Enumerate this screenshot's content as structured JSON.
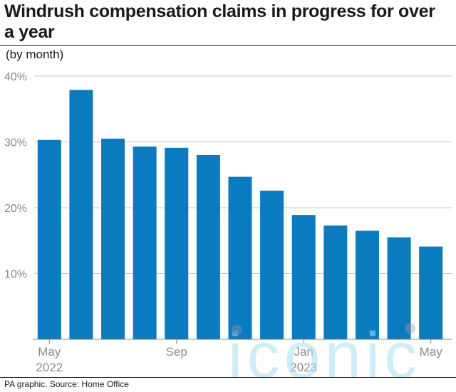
{
  "title": "Windrush compensation claims in progress for over a year",
  "subtitle": "(by month)",
  "source": "PA graphic. Source: Home Office",
  "watermark": "iconic",
  "colors": {
    "bar": "#0a7bbf",
    "grid": "#c8c8c8",
    "axis": "#888888",
    "text": "#1a1a1a"
  },
  "chart_data": {
    "type": "bar",
    "categories": [
      "May 2022",
      "Jun 2022",
      "Jul 2022",
      "Aug 2022",
      "Sep 2022",
      "Oct 2022",
      "Nov 2022",
      "Dec 2022",
      "Jan 2023",
      "Feb 2023",
      "Mar 2023",
      "Apr 2023",
      "May 2023"
    ],
    "values": [
      30.3,
      37.9,
      30.5,
      29.3,
      29.1,
      28.0,
      24.7,
      22.6,
      18.9,
      17.3,
      16.5,
      15.5,
      14.1
    ],
    "ylim": [
      0,
      40
    ],
    "yticks": [
      "40%",
      "30%",
      "20%",
      "10%"
    ],
    "ytick_values": [
      40,
      30,
      20,
      10
    ],
    "xtick_labels": [
      {
        "index": 0,
        "line1": "May",
        "line2": "2022"
      },
      {
        "index": 4,
        "line1": "Sep",
        "line2": ""
      },
      {
        "index": 8,
        "line1": "Jan",
        "line2": "2023"
      },
      {
        "index": 12,
        "line1": "May",
        "line2": ""
      }
    ],
    "grid": true,
    "legend": "none"
  }
}
